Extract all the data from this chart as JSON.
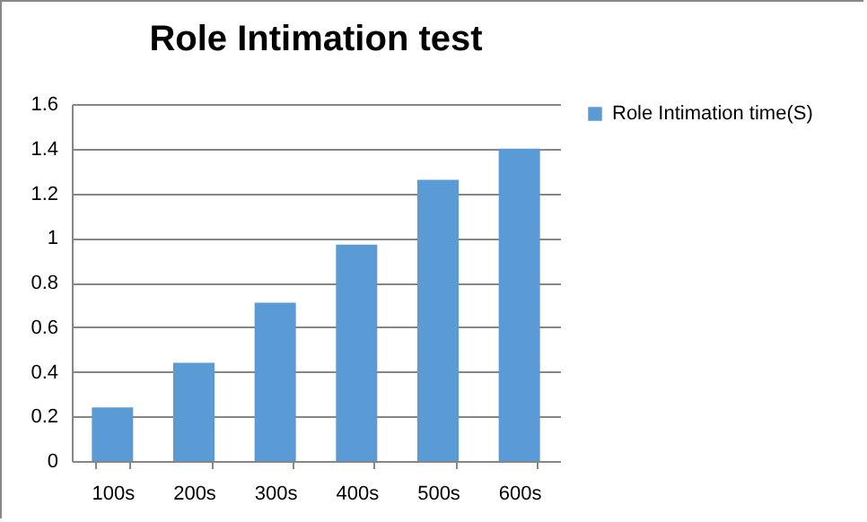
{
  "chart_data": {
    "type": "bar",
    "title": "Role Intimation test",
    "categories": [
      "100s",
      "200s",
      "300s",
      "400s",
      "500s",
      "600s"
    ],
    "series": [
      {
        "name": "Role Intimation  time(S)",
        "color": "#5b9bd5",
        "values": [
          0.24,
          0.44,
          0.71,
          0.97,
          1.26,
          1.4
        ]
      }
    ],
    "ylim": [
      0,
      1.6
    ],
    "yticks": [
      0,
      0.2,
      0.4,
      0.6,
      0.8,
      1,
      1.2,
      1.4,
      1.6
    ],
    "grid": "y",
    "legend": "right"
  }
}
